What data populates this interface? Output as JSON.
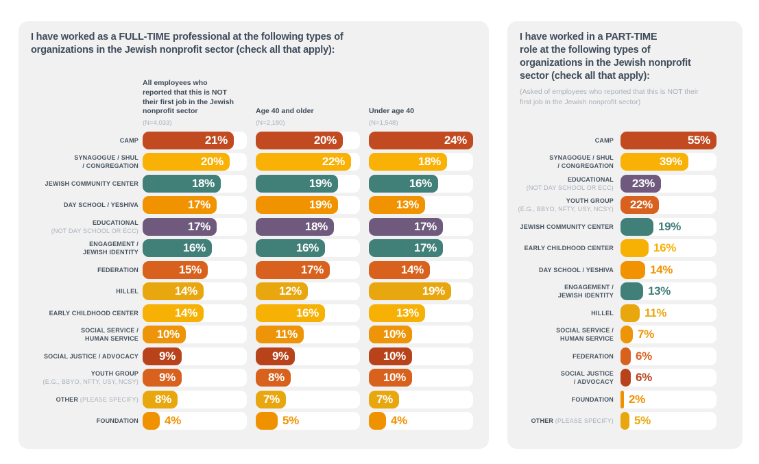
{
  "page_bg": "#FFFFFF",
  "card_bg": "#F1F1F2",
  "text_colors": {
    "title": "#3E4B58",
    "label": "#47545F",
    "muted": "#A9B1B9",
    "value_inside": "#FFFFFF"
  },
  "palette": {
    "camp": "#C14A21",
    "synagogue": "#F8B104",
    "jcc": "#417F79",
    "day_school": "#F19300",
    "educational": "#6F5A7E",
    "engagement": "#417F79",
    "federation": "#D8611D",
    "hillel": "#E9A70F",
    "early_childhood": "#F7B104",
    "social_service": "#EE9409",
    "social_justice": "#B8431B",
    "youth_group": "#D8611D",
    "other": "#E9A70F",
    "foundation": "#F09200"
  },
  "chart_data": [
    {
      "type": "bar",
      "orientation": "horizontal",
      "title_text": "I have worked as a FULL-TIME professional at the following types of\norganizations in the Jewish nonprofit sector (check all that apply):",
      "axis_max": 24,
      "label_inside_min": 7,
      "grid": false,
      "legend_position": "column-headers",
      "columns": [
        {
          "header": "All employees who\nreported that this is NOT\ntheir first job in the Jewish\nnonprofit sector",
          "n": "(N=4,033)"
        },
        {
          "header": "Age 40 and older",
          "n": "(N=2,180)"
        },
        {
          "header": "Under age 40",
          "n": "(N=1,548)"
        }
      ],
      "categories": [
        "CAMP",
        "SYNAGOGUE / SHUL / CONGREGATION",
        "JEWISH COMMUNITY CENTER",
        "DAY SCHOOL / YESHIVA",
        "EDUCATIONAL (NOT DAY SCHOOL OR ECC)",
        "ENGAGEMENT / JEWISH IDENTITY",
        "FEDERATION",
        "HILLEL",
        "EARLY CHILDHOOD CENTER",
        "SOCIAL SERVICE / HUMAN SERVICE",
        "SOCIAL JUSTICE / ADVOCACY",
        "YOUTH GROUP (E.G., BBYO, NFTY, USY, NCSY)",
        "OTHER (PLEASE SPECIFY)",
        "FOUNDATION"
      ],
      "series": [
        {
          "name": "All employees who reported that this is NOT their first job in the Jewish nonprofit sector",
          "values": [
            21,
            20,
            18,
            17,
            17,
            16,
            15,
            14,
            14,
            10,
            9,
            9,
            8,
            4
          ]
        },
        {
          "name": "Age 40 and older",
          "values": [
            20,
            22,
            19,
            19,
            18,
            16,
            17,
            12,
            16,
            11,
            9,
            8,
            7,
            5
          ]
        },
        {
          "name": "Under age 40",
          "values": [
            24,
            18,
            16,
            13,
            17,
            17,
            14,
            19,
            13,
            10,
            10,
            10,
            7,
            4
          ]
        }
      ],
      "rows": [
        {
          "color": "camp",
          "values": [
            21,
            20,
            24
          ],
          "label_lines": [
            [
              {
                "t": "CAMP"
              }
            ]
          ]
        },
        {
          "color": "synagogue",
          "values": [
            20,
            22,
            18
          ],
          "label_lines": [
            [
              {
                "t": "SYNAGOGUE / SHUL"
              }
            ],
            [
              {
                "t": "/ CONGREGATION"
              }
            ]
          ]
        },
        {
          "color": "jcc",
          "values": [
            18,
            19,
            16
          ],
          "label_lines": [
            [
              {
                "t": "JEWISH COMMUNITY CENTER"
              }
            ]
          ]
        },
        {
          "color": "day_school",
          "values": [
            17,
            19,
            13
          ],
          "label_lines": [
            [
              {
                "t": "DAY SCHOOL / YESHIVA"
              }
            ]
          ]
        },
        {
          "color": "educational",
          "values": [
            17,
            18,
            17
          ],
          "label_lines": [
            [
              {
                "t": "EDUCATIONAL"
              }
            ],
            [
              {
                "t": "(NOT DAY SCHOOL OR ECC)",
                "muted": true
              }
            ]
          ]
        },
        {
          "color": "engagement",
          "values": [
            16,
            16,
            17
          ],
          "label_lines": [
            [
              {
                "t": "ENGAGEMENT /"
              }
            ],
            [
              {
                "t": "JEWISH IDENTITY"
              }
            ]
          ]
        },
        {
          "color": "federation",
          "values": [
            15,
            17,
            14
          ],
          "label_lines": [
            [
              {
                "t": "FEDERATION"
              }
            ]
          ]
        },
        {
          "color": "hillel",
          "values": [
            14,
            12,
            19
          ],
          "label_lines": [
            [
              {
                "t": "HILLEL"
              }
            ]
          ]
        },
        {
          "color": "early_childhood",
          "values": [
            14,
            16,
            13
          ],
          "label_lines": [
            [
              {
                "t": "EARLY CHILDHOOD CENTER"
              }
            ]
          ]
        },
        {
          "color": "social_service",
          "values": [
            10,
            11,
            10
          ],
          "label_lines": [
            [
              {
                "t": "SOCIAL SERVICE /"
              }
            ],
            [
              {
                "t": "HUMAN SERVICE"
              }
            ]
          ]
        },
        {
          "color": "social_justice",
          "values": [
            9,
            9,
            10
          ],
          "label_lines": [
            [
              {
                "t": "SOCIAL JUSTICE / ADVOCACY"
              }
            ]
          ]
        },
        {
          "color": "youth_group",
          "values": [
            9,
            8,
            10
          ],
          "label_lines": [
            [
              {
                "t": "YOUTH GROUP"
              }
            ],
            [
              {
                "t": "(E.G., BBYO, NFTY, USY, NCSY)",
                "muted": true
              }
            ]
          ]
        },
        {
          "color": "other",
          "values": [
            8,
            7,
            7
          ],
          "label_lines": [
            [
              {
                "t": "OTHER "
              },
              {
                "t": "(PLEASE SPECIFY)",
                "muted": true
              }
            ]
          ]
        },
        {
          "color": "foundation",
          "values": [
            4,
            5,
            4
          ],
          "label_lines": [
            [
              {
                "t": "FOUNDATION"
              }
            ]
          ]
        }
      ]
    },
    {
      "type": "bar",
      "orientation": "horizontal",
      "title_text": "I have worked in a PART-TIME\nrole at the following types of\norganizations in the Jewish nonprofit\nsector (check all that apply):",
      "subtitle_text": "(Asked of employees who reported that this is NOT their\nfirst job in the Jewish nonprofit sector)",
      "axis_max": 55,
      "label_inside_min": 22,
      "grid": false,
      "columns": [
        {
          "header": "",
          "n": ""
        }
      ],
      "categories": [
        "CAMP",
        "SYNAGOGUE / SHUL / CONGREGATION",
        "EDUCATIONAL (NOT DAY SCHOOL OR ECC)",
        "YOUTH GROUP (E.G., BBYO, NFTY, USY, NCSY)",
        "JEWISH COMMUNITY CENTER",
        "EARLY CHILDHOOD CENTER",
        "DAY SCHOOL / YESHIVA",
        "ENGAGEMENT / JEWISH IDENTITY",
        "HILLEL",
        "SOCIAL SERVICE / HUMAN SERVICE",
        "FEDERATION",
        "SOCIAL JUSTICE / ADVOCACY",
        "FOUNDATION",
        "OTHER (PLEASE SPECIFY)"
      ],
      "series": [
        {
          "name": "Part-time",
          "values": [
            55,
            39,
            23,
            22,
            19,
            16,
            14,
            13,
            11,
            7,
            6,
            6,
            2,
            5
          ]
        }
      ],
      "rows": [
        {
          "color": "camp",
          "values": [
            55
          ],
          "label_lines": [
            [
              {
                "t": "CAMP"
              }
            ]
          ]
        },
        {
          "color": "synagogue",
          "values": [
            39
          ],
          "label_lines": [
            [
              {
                "t": "SYNAGOGUE / SHUL"
              }
            ],
            [
              {
                "t": "/ CONGREGATION"
              }
            ]
          ]
        },
        {
          "color": "educational",
          "values": [
            23
          ],
          "label_lines": [
            [
              {
                "t": "EDUCATIONAL"
              }
            ],
            [
              {
                "t": "(NOT DAY SCHOOL OR ECC)",
                "muted": true
              }
            ]
          ]
        },
        {
          "color": "youth_group",
          "values": [
            22
          ],
          "label_lines": [
            [
              {
                "t": "YOUTH GROUP"
              }
            ],
            [
              {
                "t": "(E.G., BBYO, NFTY, USY, NCSY)",
                "muted": true
              }
            ]
          ]
        },
        {
          "color": "jcc",
          "values": [
            19
          ],
          "label_lines": [
            [
              {
                "t": "JEWISH COMMUNITY CENTER"
              }
            ]
          ]
        },
        {
          "color": "early_childhood",
          "values": [
            16
          ],
          "label_lines": [
            [
              {
                "t": "EARLY CHILDHOOD CENTER"
              }
            ]
          ]
        },
        {
          "color": "day_school",
          "values": [
            14
          ],
          "label_lines": [
            [
              {
                "t": "DAY SCHOOL / YESHIVA"
              }
            ]
          ]
        },
        {
          "color": "engagement",
          "values": [
            13
          ],
          "label_lines": [
            [
              {
                "t": "ENGAGEMENT /"
              }
            ],
            [
              {
                "t": "JEWISH IDENTITY"
              }
            ]
          ]
        },
        {
          "color": "hillel",
          "values": [
            11
          ],
          "label_lines": [
            [
              {
                "t": "HILLEL"
              }
            ]
          ]
        },
        {
          "color": "social_service",
          "values": [
            7
          ],
          "label_lines": [
            [
              {
                "t": "SOCIAL SERVICE /"
              }
            ],
            [
              {
                "t": "HUMAN SERVICE"
              }
            ]
          ]
        },
        {
          "color": "federation",
          "values": [
            6
          ],
          "label_lines": [
            [
              {
                "t": "FEDERATION"
              }
            ]
          ]
        },
        {
          "color": "social_justice",
          "values": [
            6
          ],
          "label_lines": [
            [
              {
                "t": "SOCIAL JUSTICE"
              }
            ],
            [
              {
                "t": "/ ADVOCACY"
              }
            ]
          ]
        },
        {
          "color": "foundation",
          "values": [
            2
          ],
          "label_lines": [
            [
              {
                "t": "FOUNDATION"
              }
            ]
          ]
        },
        {
          "color": "other",
          "values": [
            5
          ],
          "label_lines": [
            [
              {
                "t": "OTHER "
              },
              {
                "t": "(PLEASE SPECIFY)",
                "muted": true
              }
            ]
          ]
        }
      ]
    }
  ]
}
